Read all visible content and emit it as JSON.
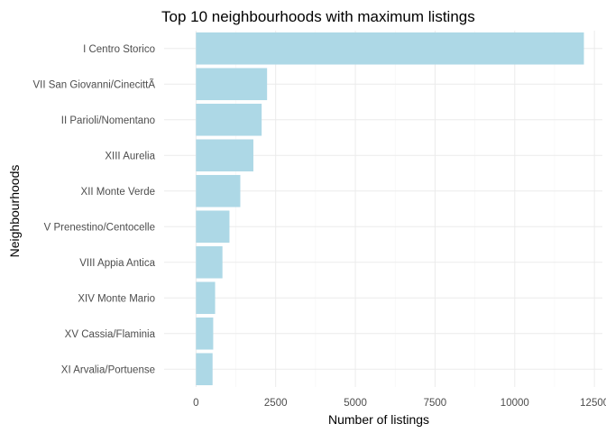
{
  "chart_data": {
    "type": "bar",
    "orientation": "horizontal",
    "title": "Top  10 neighbourhoods with maximum listings",
    "xlabel": "Number of listings",
    "ylabel": "Neighbourhoods",
    "categories": [
      "I Centro Storico",
      "VII San Giovanni/CinecittÃ",
      "II Parioli/Nomentano",
      "XIII Aurelia",
      "XII Monte Verde",
      "V Prenestino/Centocelle",
      "VIII Appia Antica",
      "XIV Monte Mario",
      "XV Cassia/Flaminia",
      "XI Arvalia/Portuense"
    ],
    "values": [
      12170,
      2230,
      2060,
      1800,
      1390,
      1050,
      830,
      600,
      540,
      520
    ],
    "xlim": [
      -1000,
      12750
    ],
    "xticks": [
      0,
      2500,
      5000,
      7500,
      10000,
      12500
    ],
    "xtick_labels": [
      "0",
      "2500",
      "5000",
      "7500",
      "10000",
      "12500"
    ],
    "grid": true,
    "legend": "none",
    "bar_color": "#add8e6"
  }
}
